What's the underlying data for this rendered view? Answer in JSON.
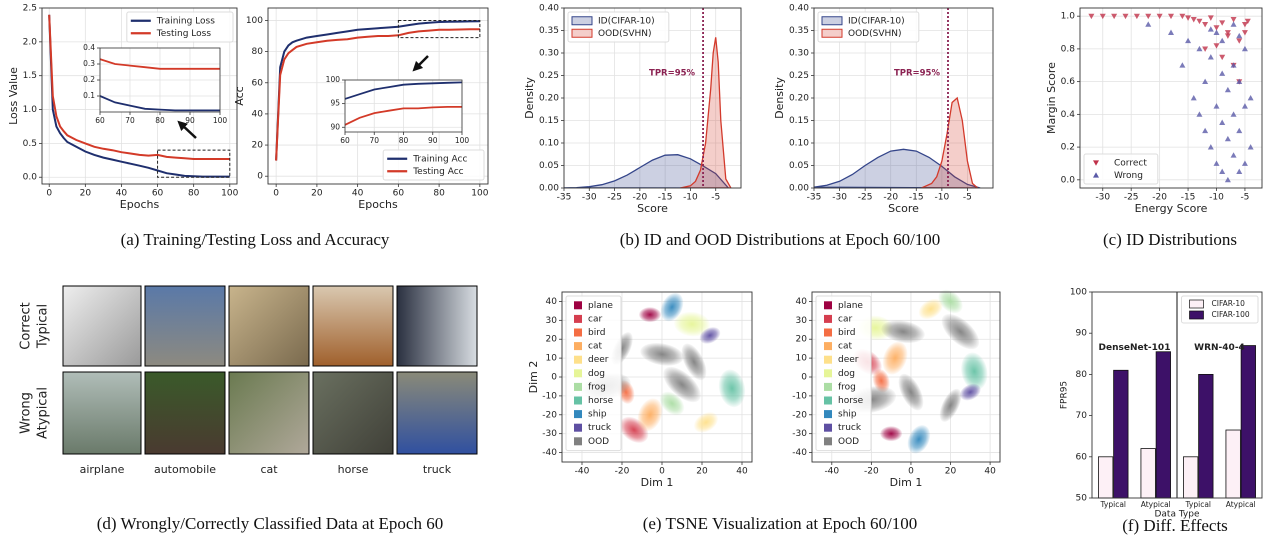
{
  "chart_data": [
    {
      "type": "line",
      "xlabel": "Epochs",
      "ylabel": "Loss Value",
      "x": [
        0,
        2,
        4,
        6,
        8,
        10,
        15,
        20,
        25,
        30,
        35,
        40,
        45,
        50,
        55,
        60,
        65,
        70,
        75,
        80,
        85,
        90,
        95,
        100
      ],
      "series": [
        {
          "name": "Training Loss",
          "color": "#1f2f6e",
          "values": [
            2.4,
            1.0,
            0.75,
            0.65,
            0.58,
            0.52,
            0.45,
            0.38,
            0.33,
            0.29,
            0.26,
            0.23,
            0.2,
            0.17,
            0.14,
            0.1,
            0.06,
            0.04,
            0.02,
            0.015,
            0.01,
            0.01,
            0.01,
            0.01
          ]
        },
        {
          "name": "Testing Loss",
          "color": "#d33a28",
          "values": [
            2.4,
            1.2,
            0.9,
            0.75,
            0.68,
            0.62,
            0.55,
            0.5,
            0.45,
            0.42,
            0.4,
            0.37,
            0.35,
            0.33,
            0.32,
            0.33,
            0.3,
            0.29,
            0.28,
            0.27,
            0.27,
            0.27,
            0.27,
            0.27
          ]
        }
      ],
      "xlim": [
        -4,
        104
      ],
      "ylim": [
        -0.1,
        2.5
      ],
      "xticks": [
        0,
        20,
        40,
        60,
        80,
        100
      ],
      "yticks": [
        {
          "value": 0,
          "label": "0.0"
        },
        0.5,
        {
          "value": 1,
          "label": "1.0"
        },
        1.5,
        {
          "value": 2,
          "label": "2.0"
        },
        2.5
      ],
      "grid": true,
      "legend": "upper right",
      "inset": {
        "xlim": [
          60,
          100
        ],
        "ylim": [
          0,
          0.4
        ],
        "xticks": [
          60,
          70,
          80,
          90,
          100
        ],
        "yticks": [
          0.1,
          0.2,
          0.3,
          0.4
        ]
      }
    },
    {
      "type": "line",
      "xlabel": "Epochs",
      "ylabel": "Acc",
      "x": [
        0,
        2,
        4,
        6,
        8,
        10,
        15,
        20,
        25,
        30,
        35,
        40,
        45,
        50,
        55,
        60,
        65,
        70,
        75,
        80,
        85,
        90,
        95,
        100
      ],
      "series": [
        {
          "name": "Training Acc",
          "color": "#1f2f6e",
          "values": [
            10,
            70,
            80,
            84,
            86,
            87,
            89,
            90,
            91,
            92,
            93,
            94,
            94.5,
            95,
            95.5,
            96,
            97,
            98,
            98.5,
            99,
            99.2,
            99.3,
            99.4,
            99.5
          ]
        },
        {
          "name": "Testing Acc",
          "color": "#d33a28",
          "values": [
            10,
            65,
            75,
            79,
            81,
            83,
            85,
            86,
            87,
            87.5,
            88,
            89,
            89.5,
            90,
            90,
            90.5,
            92,
            93,
            93.5,
            94,
            94,
            94.2,
            94.3,
            94.3
          ]
        }
      ],
      "xlim": [
        -4,
        104
      ],
      "ylim": [
        -5,
        108
      ],
      "xticks": [
        0,
        20,
        40,
        60,
        80,
        100
      ],
      "yticks": [
        0,
        20,
        40,
        60,
        80,
        100
      ],
      "grid": true,
      "legend": "lower right",
      "inset": {
        "xlim": [
          60,
          100
        ],
        "ylim": [
          89,
          100
        ],
        "xticks": [
          60,
          70,
          80,
          90,
          100
        ],
        "yticks": [
          90,
          95,
          100
        ]
      }
    },
    {
      "type": "area",
      "xlabel": "Score",
      "ylabel": "Density",
      "xlim": [
        -35,
        0
      ],
      "xticks": [
        -35,
        -30,
        -25,
        -20,
        -15,
        -10,
        -5
      ],
      "ylim": [
        0,
        0.4
      ],
      "yticks": [
        {
          "value": 0,
          "label": "0.00"
        },
        {
          "value": 0.05,
          "label": "0.05"
        },
        {
          "value": 0.1,
          "label": "0.10"
        },
        {
          "value": 0.15,
          "label": "0.15"
        },
        {
          "value": 0.2,
          "label": "0.20"
        },
        {
          "value": 0.25,
          "label": "0.25"
        },
        {
          "value": 0.3,
          "label": "0.30"
        },
        {
          "value": 0.35,
          "label": "0.35"
        },
        {
          "value": 0.4,
          "label": "0.40"
        }
      ],
      "grid": true,
      "legend": "upper left",
      "vline": -7.5,
      "annotation": "TPR=95%",
      "series": [
        {
          "name": "ID(CIFAR-10)",
          "color": "#34458a",
          "x": [
            -35,
            -32.5,
            -30,
            -27.5,
            -25,
            -22.5,
            -20,
            -17.5,
            -15,
            -12.5,
            -10,
            -7.5,
            -5,
            -2.5
          ],
          "values": [
            0.0003,
            0.001,
            0.003,
            0.0074,
            0.0157,
            0.0287,
            0.0455,
            0.062,
            0.073,
            0.074,
            0.065,
            0.049,
            0.032,
            0
          ]
        },
        {
          "name": "OOD(SVHN)",
          "color": "#d33a2c",
          "x": [
            -12,
            -10,
            -9,
            -8,
            -7,
            -6,
            -5.5,
            -5,
            -4.5,
            -4,
            -3,
            -2
          ],
          "values": [
            0,
            0.005,
            0.015,
            0.04,
            0.1,
            0.22,
            0.3,
            0.335,
            0.28,
            0.15,
            0.02,
            0
          ]
        }
      ]
    },
    {
      "type": "area",
      "xlabel": "Score",
      "ylabel": "Density",
      "xlim": [
        -35,
        0
      ],
      "xticks": [
        -35,
        -30,
        -25,
        -20,
        -15,
        -10,
        -5
      ],
      "ylim": [
        0,
        0.4
      ],
      "yticks": [
        {
          "value": 0,
          "label": "0.00"
        },
        {
          "value": 0.05,
          "label": "0.05"
        },
        {
          "value": 0.1,
          "label": "0.10"
        },
        {
          "value": 0.15,
          "label": "0.15"
        },
        {
          "value": 0.2,
          "label": "0.20"
        },
        {
          "value": 0.25,
          "label": "0.25"
        },
        {
          "value": 0.3,
          "label": "0.30"
        },
        {
          "value": 0.35,
          "label": "0.35"
        },
        {
          "value": 0.4,
          "label": "0.40"
        }
      ],
      "grid": true,
      "legend": "upper left",
      "vline": -8.8,
      "annotation": "TPR=95%",
      "series": [
        {
          "name": "ID(CIFAR-10)",
          "color": "#34458a",
          "x": [
            -35,
            -32.5,
            -30,
            -27.5,
            -25,
            -22.5,
            -20,
            -17.5,
            -15,
            -12.5,
            -10,
            -7.5,
            -5,
            -2.5
          ],
          "values": [
            0.002,
            0.006,
            0.015,
            0.03,
            0.05,
            0.068,
            0.082,
            0.086,
            0.082,
            0.068,
            0.048,
            0.025,
            0.008,
            0
          ]
        },
        {
          "name": "OOD(SVHN)",
          "color": "#d33a2c",
          "x": [
            -14,
            -12,
            -11,
            -10,
            -9,
            -8,
            -7,
            -6,
            -5,
            -4,
            -3
          ],
          "values": [
            0,
            0.01,
            0.025,
            0.06,
            0.12,
            0.19,
            0.2,
            0.15,
            0.06,
            0.01,
            0
          ]
        }
      ]
    },
    {
      "type": "scatter",
      "xlabel": "Energy Score",
      "ylabel": "Margin Score",
      "xlim": [
        -34,
        -2
      ],
      "xticks": [
        -30,
        -25,
        -20,
        -15,
        -10,
        -5
      ],
      "ylim": [
        -0.05,
        1.05
      ],
      "yticks": [
        {
          "value": 0,
          "label": "0.0"
        },
        0.2,
        0.4,
        0.6,
        0.8,
        {
          "value": 1,
          "label": "1.0"
        }
      ],
      "grid": true,
      "legend": "lower left",
      "series": [
        {
          "name": "Correct",
          "color": "#c0324a",
          "marker": "triangle-down",
          "x": [
            -32,
            -30,
            -28,
            -26,
            -24,
            -22,
            -20,
            -18,
            -16,
            -15,
            -14,
            -13,
            -12,
            -11,
            -10,
            -9,
            -8,
            -7,
            -6,
            -5,
            -12,
            -9,
            -7,
            -6,
            -5,
            -8,
            -10,
            -4.5
          ],
          "values": [
            1,
            1,
            1,
            1,
            1,
            1,
            1,
            1,
            1,
            0.99,
            0.98,
            0.97,
            0.95,
            0.99,
            0.93,
            0.96,
            0.9,
            0.98,
            0.85,
            0.95,
            0.8,
            0.75,
            0.7,
            0.6,
            0.9,
            0.88,
            0.82,
            0.97
          ]
        },
        {
          "name": "Wrong",
          "color": "#5a5aa8",
          "marker": "triangle-up",
          "x": [
            -22,
            -18,
            -16,
            -14,
            -13,
            -12,
            -12,
            -11,
            -11,
            -10,
            -10,
            -9,
            -9,
            -9,
            -8,
            -8,
            -8,
            -7,
            -7,
            -7,
            -6,
            -6,
            -6,
            -5,
            -5,
            -5,
            -4,
            -4,
            -10,
            -13,
            -15,
            -11,
            -7,
            -9,
            -6
          ],
          "values": [
            0.95,
            0.9,
            0.7,
            0.5,
            0.8,
            0.3,
            0.6,
            0.2,
            0.75,
            0.1,
            0.45,
            0.05,
            0.35,
            0.65,
            0.0,
            0.25,
            0.55,
            0.15,
            0.4,
            0.7,
            0.05,
            0.3,
            0.6,
            0.1,
            0.45,
            0.8,
            0.2,
            0.5,
            0.9,
            0.4,
            0.85,
            0.92,
            0.95,
            0.85,
            0.88
          ]
        }
      ]
    },
    {
      "type": "cluster",
      "xlabel": "Dim 1",
      "ylabel": "Dim 2",
      "xlim": [
        -50,
        45
      ],
      "xticks": [
        -40,
        -20,
        0,
        20,
        40
      ],
      "ylim": [
        -45,
        45
      ],
      "yticks": [
        -40,
        -30,
        -20,
        -10,
        0,
        10,
        20,
        30,
        40
      ],
      "grid": true,
      "legend": "upper left",
      "series": [
        {
          "name": "plane",
          "color": "#9e0142",
          "x": [
            -6
          ],
          "values": [
            33
          ]
        },
        {
          "name": "car",
          "color": "#d53e4f",
          "x": [
            -14
          ],
          "values": [
            -28
          ]
        },
        {
          "name": "bird",
          "color": "#f46d43",
          "x": [
            -18
          ],
          "values": [
            -8
          ]
        },
        {
          "name": "cat",
          "color": "#fdae61",
          "x": [
            -6
          ],
          "values": [
            -20
          ]
        },
        {
          "name": "deer",
          "color": "#fee08b",
          "x": [
            22
          ],
          "values": [
            -24
          ]
        },
        {
          "name": "dog",
          "color": "#e6f598",
          "x": [
            15
          ],
          "values": [
            28
          ]
        },
        {
          "name": "frog",
          "color": "#abdda4",
          "x": [
            5
          ],
          "values": [
            -14
          ]
        },
        {
          "name": "horse",
          "color": "#66c2a5",
          "x": [
            35
          ],
          "values": [
            -6
          ]
        },
        {
          "name": "ship",
          "color": "#3288bd",
          "x": [
            5
          ],
          "values": [
            37
          ]
        },
        {
          "name": "truck",
          "color": "#5e4fa2",
          "x": [
            24
          ],
          "values": [
            22
          ]
        },
        {
          "name": "OOD",
          "color": "#808080",
          "x": [
            0,
            16,
            -20,
            -28,
            10
          ],
          "values": [
            12,
            8,
            15,
            -5,
            -4
          ]
        }
      ]
    },
    {
      "type": "cluster",
      "xlabel": "Dim 1",
      "xlim": [
        -50,
        45
      ],
      "xticks": [
        -40,
        -20,
        0,
        20,
        40
      ],
      "ylim": [
        -45,
        45
      ],
      "yticks": [
        -40,
        -30,
        -20,
        -10,
        0,
        10,
        20,
        30,
        40
      ],
      "grid": true,
      "legend": "upper left",
      "series": [
        {
          "name": "plane",
          "color": "#9e0142",
          "x": [
            -10
          ],
          "values": [
            -30
          ]
        },
        {
          "name": "car",
          "color": "#d53e4f",
          "x": [
            -22
          ],
          "values": [
            8
          ]
        },
        {
          "name": "bird",
          "color": "#f46d43",
          "x": [
            -15
          ],
          "values": [
            -2
          ]
        },
        {
          "name": "cat",
          "color": "#fdae61",
          "x": [
            -8
          ],
          "values": [
            10
          ]
        },
        {
          "name": "deer",
          "color": "#fee08b",
          "x": [
            10
          ],
          "values": [
            36
          ]
        },
        {
          "name": "dog",
          "color": "#e6f598",
          "x": [
            -18
          ],
          "values": [
            26
          ]
        },
        {
          "name": "frog",
          "color": "#abdda4",
          "x": [
            20
          ],
          "values": [
            40
          ]
        },
        {
          "name": "horse",
          "color": "#66c2a5",
          "x": [
            32
          ],
          "values": [
            3
          ]
        },
        {
          "name": "ship",
          "color": "#3288bd",
          "x": [
            4
          ],
          "values": [
            -33
          ]
        },
        {
          "name": "truck",
          "color": "#5e4fa2",
          "x": [
            30
          ],
          "values": [
            -8
          ]
        },
        {
          "name": "OOD",
          "color": "#808080",
          "x": [
            -4,
            0,
            20,
            -20,
            25
          ],
          "values": [
            24,
            -8,
            -15,
            -12,
            24
          ]
        }
      ]
    },
    {
      "type": "bar",
      "xlabel": "Data Type",
      "ylabel": "FPR95",
      "categories": [
        "Typical",
        "Atypical",
        "Typical",
        "Atypical"
      ],
      "series": [
        {
          "name": "CIFAR-10",
          "color": "#fdf0f6",
          "values": [
            60,
            62,
            60,
            66.5
          ]
        },
        {
          "name": "CIFAR-100",
          "color": "#3d1168",
          "values": [
            81,
            85.5,
            80,
            87
          ]
        }
      ],
      "ylim": [
        50,
        100
      ],
      "yticks": [
        50,
        60,
        70,
        80,
        90,
        100
      ],
      "grid": false,
      "legend": "upper right",
      "group_labels": [
        "DenseNet-101",
        "WRN-40-4"
      ]
    }
  ],
  "figure_d": {
    "row_labels": [
      [
        "Correct",
        "Typical"
      ],
      [
        "Wrong",
        "Atypical"
      ]
    ],
    "columns": [
      "airplane",
      "automobile",
      "cat",
      "horse",
      "truck"
    ]
  },
  "captions": [
    "(a) Training/Testing Loss and Accuracy",
    "(b) ID and OOD Distributions at Epoch 60/100",
    "(c) ID Distributions",
    "(d) Wrongly/Correctly Classified Data at Epoch 60",
    "(e) TSNE Visualization at Epoch 60/100",
    "(f) Diff. Effects"
  ]
}
